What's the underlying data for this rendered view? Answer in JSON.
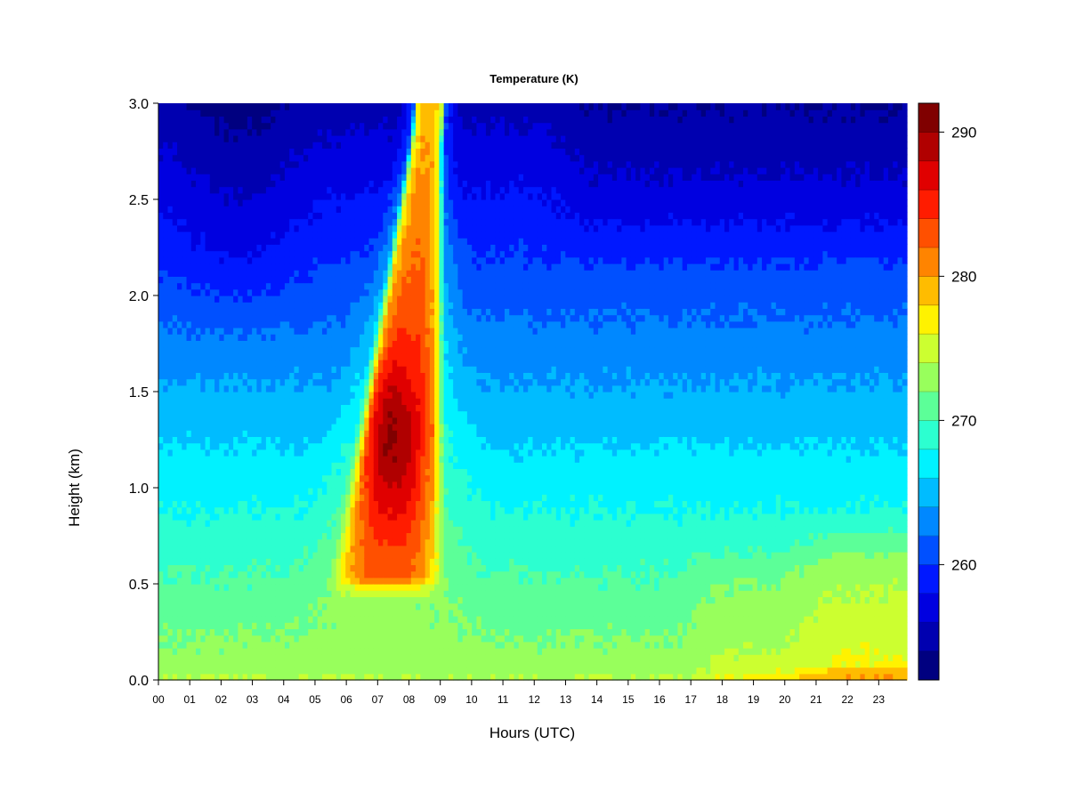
{
  "chart_data": {
    "type": "heatmap",
    "title": "Temperature (K)",
    "xlabel": "Hours (UTC)",
    "ylabel": "Height (km)",
    "x_tick_labels": [
      "00",
      "01",
      "02",
      "03",
      "04",
      "05",
      "06",
      "07",
      "08",
      "09",
      "10",
      "11",
      "12",
      "13",
      "14",
      "15",
      "16",
      "17",
      "18",
      "19",
      "20",
      "21",
      "22",
      "23"
    ],
    "y_tick_values": [
      0.0,
      0.5,
      1.0,
      1.5,
      2.0,
      2.5,
      3.0
    ],
    "y_tick_labels": [
      "0.0",
      "0.5",
      "1.0",
      "1.5",
      "2.0",
      "2.5",
      "3.0"
    ],
    "xlim": [
      0,
      23.9
    ],
    "ylim": [
      0,
      3.0
    ],
    "colorbar": {
      "range": [
        252,
        292
      ],
      "levels": 20,
      "tick_values": [
        260,
        270,
        280,
        290
      ],
      "tick_labels": [
        "260",
        "270",
        "280",
        "290"
      ],
      "colors": [
        "#000080",
        "#0000B0",
        "#0000E0",
        "#0018FF",
        "#0050FF",
        "#0088FF",
        "#00BCFF",
        "#00F2FF",
        "#2CFFD0",
        "#5CFF98",
        "#98FF5C",
        "#CCFF30",
        "#FFF200",
        "#FFBC00",
        "#FF8400",
        "#FF5000",
        "#FF1C00",
        "#E00000",
        "#B00000",
        "#800000"
      ]
    },
    "features": [
      {
        "name": "warm plume",
        "hours": [
          6.0,
          10.0
        ],
        "height_km": [
          0.5,
          3.0
        ],
        "peak_K": 291,
        "peak_at": [
          7.3,
          1.25
        ]
      },
      {
        "name": "cold upper air",
        "hours": [
          0,
          5.5
        ],
        "height_km": [
          2.0,
          3.0
        ],
        "value_K": 257
      },
      {
        "name": "cold upper air",
        "hours": [
          12,
          24
        ],
        "height_km": [
          2.0,
          3.0
        ],
        "value_K": 256
      },
      {
        "name": "warm surface layer evening",
        "hours": [
          17,
          24
        ],
        "height_km": [
          0,
          0.7
        ],
        "value_K": 275
      }
    ]
  }
}
